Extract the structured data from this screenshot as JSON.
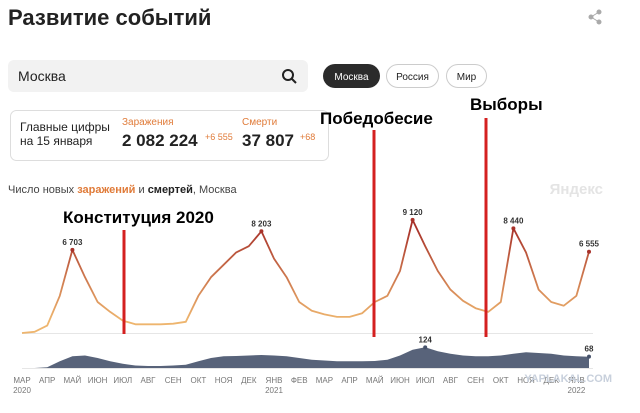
{
  "header": {
    "title": "Развитие событий"
  },
  "search": {
    "value": "Москва"
  },
  "buttons": [
    "Москва",
    "Россия",
    "Мир"
  ],
  "summary": {
    "heading": [
      "Главные цифры",
      "на 15 января"
    ],
    "cases": {
      "label": "Заражения",
      "value": "2 082 224",
      "delta": "+6 555"
    },
    "deaths": {
      "label": "Смерти",
      "value": "37 807",
      "delta": "+68"
    }
  },
  "brand": "Яндекс",
  "watermark": "YAPLAKAL.COM",
  "annotations": [
    "Конституция 2020",
    "Победобесие",
    "Выборы"
  ],
  "chart_data": {
    "type": "line",
    "title_parts": [
      "Число новых ",
      "заражений",
      " и ",
      "смертей",
      ", Москва"
    ],
    "x": [
      0,
      0.5,
      1,
      1.5,
      2,
      2.5,
      3,
      3.5,
      4,
      4.5,
      5,
      5.5,
      6,
      6.5,
      7,
      7.5,
      8,
      8.5,
      9,
      9.5,
      10,
      10.5,
      11,
      11.5,
      12,
      12.5,
      13,
      13.5,
      14,
      14.5,
      15,
      15.5,
      16,
      16.5,
      17,
      17.5,
      18,
      18.5,
      19,
      19.5,
      20,
      20.5,
      21,
      21.5,
      22,
      22.5
    ],
    "xlim": [
      0,
      22.5
    ],
    "xticks": [
      {
        "value": 0,
        "label": "МАР"
      },
      {
        "value": 1,
        "label": "АПР"
      },
      {
        "value": 2,
        "label": "МАЙ"
      },
      {
        "value": 3,
        "label": "ИЮН"
      },
      {
        "value": 4,
        "label": "ИЮЛ"
      },
      {
        "value": 5,
        "label": "АВГ"
      },
      {
        "value": 6,
        "label": "СЕН"
      },
      {
        "value": 7,
        "label": "ОКТ"
      },
      {
        "value": 8,
        "label": "НОЯ"
      },
      {
        "value": 9,
        "label": "ДЕК"
      },
      {
        "value": 10,
        "label": "ЯНВ"
      },
      {
        "value": 11,
        "label": "ФЕВ"
      },
      {
        "value": 12,
        "label": "МАР"
      },
      {
        "value": 13,
        "label": "АПР"
      },
      {
        "value": 14,
        "label": "МАЙ"
      },
      {
        "value": 15,
        "label": "ИЮН"
      },
      {
        "value": 16,
        "label": "ИЮЛ"
      },
      {
        "value": 17,
        "label": "АВГ"
      },
      {
        "value": 18,
        "label": "СЕН"
      },
      {
        "value": 19,
        "label": "ОКТ"
      },
      {
        "value": 20,
        "label": "НОЯ"
      },
      {
        "value": 21,
        "label": "ДЕК"
      },
      {
        "value": 22,
        "label": "ЯНВ"
      }
    ],
    "x_year_labels": [
      {
        "value": 0,
        "label": "2020"
      },
      {
        "value": 10,
        "label": "2021"
      },
      {
        "value": 22,
        "label": "2022"
      }
    ],
    "ylim": [
      0,
      10000
    ],
    "y2lim": [
      0,
      150
    ],
    "series": [
      {
        "color": "#eeb56e",
        "peak_color": "#a8322a",
        "values": [
          0,
          100,
          600,
          3000,
          6703,
          4500,
          2500,
          1700,
          1000,
          700,
          700,
          700,
          750,
          900,
          3000,
          4500,
          5500,
          6500,
          7000,
          8203,
          6000,
          4500,
          2500,
          1800,
          1500,
          1300,
          1300,
          1600,
          2500,
          3000,
          5000,
          9120,
          7000,
          5000,
          3500,
          2600,
          2000,
          1700,
          2500,
          8440,
          6500,
          3500,
          2500,
          2200,
          3000,
          6555
        ],
        "value_labels": [
          null,
          null,
          null,
          null,
          "6 703",
          null,
          null,
          null,
          null,
          null,
          null,
          null,
          null,
          null,
          null,
          null,
          null,
          null,
          null,
          "8 203",
          null,
          null,
          null,
          null,
          null,
          null,
          null,
          null,
          null,
          null,
          null,
          "9 120",
          null,
          null,
          null,
          null,
          null,
          null,
          null,
          "8 440",
          null,
          null,
          null,
          null,
          null,
          "6 555"
        ]
      },
      {
        "color": "#46526b",
        "axis": "y2",
        "values": [
          0,
          0,
          5,
          40,
          70,
          75,
          60,
          40,
          25,
          15,
          12,
          12,
          15,
          20,
          40,
          60,
          70,
          72,
          75,
          78,
          75,
          70,
          60,
          50,
          45,
          40,
          40,
          40,
          42,
          50,
          75,
          110,
          124,
          100,
          85,
          75,
          70,
          70,
          75,
          85,
          95,
          90,
          85,
          75,
          70,
          68
        ],
        "value_labels": [
          null,
          null,
          null,
          null,
          null,
          null,
          null,
          null,
          null,
          null,
          null,
          null,
          null,
          null,
          null,
          null,
          null,
          null,
          null,
          null,
          null,
          null,
          null,
          null,
          null,
          null,
          null,
          null,
          null,
          null,
          null,
          null,
          "124",
          null,
          null,
          null,
          null,
          null,
          null,
          null,
          null,
          null,
          null,
          null,
          null,
          "68"
        ]
      }
    ]
  }
}
